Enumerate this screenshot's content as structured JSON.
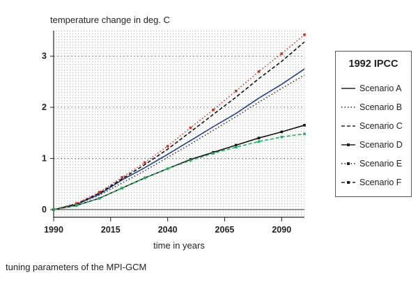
{
  "chart_data": {
    "type": "line",
    "title": "temperature change in deg. C",
    "xlabel": "time in years",
    "ylabel": "",
    "xlim": [
      1990,
      2100
    ],
    "ylim": [
      -0.15,
      3.5
    ],
    "xticks": [
      "1990",
      "2015",
      "2040",
      "2065",
      "2090"
    ],
    "yticks": [
      "0",
      "1",
      "2",
      "3"
    ],
    "grid": true,
    "legend_title": "1992 IPCC",
    "legend_position": "right",
    "series": [
      {
        "name": "Scenario A",
        "style": "solid",
        "color": "#1f3f8f",
        "x": [
          1990,
          2000,
          2010,
          2020,
          2030,
          2040,
          2050,
          2060,
          2070,
          2080,
          2090,
          2100
        ],
        "y": [
          0.0,
          0.1,
          0.3,
          0.58,
          0.82,
          1.08,
          1.35,
          1.62,
          1.88,
          2.18,
          2.45,
          2.75
        ]
      },
      {
        "name": "Scenario B",
        "style": "dotted",
        "color": "#333333",
        "x": [
          1990,
          2000,
          2010,
          2020,
          2030,
          2040,
          2050,
          2060,
          2070,
          2080,
          2090,
          2100
        ],
        "y": [
          0.0,
          0.1,
          0.28,
          0.52,
          0.76,
          1.02,
          1.28,
          1.55,
          1.82,
          2.1,
          2.37,
          2.63
        ]
      },
      {
        "name": "Scenario C",
        "style": "dashed",
        "color": "#111111",
        "x": [
          1990,
          2000,
          2010,
          2020,
          2030,
          2040,
          2050,
          2060,
          2070,
          2080,
          2090,
          2100
        ],
        "y": [
          0.0,
          0.11,
          0.32,
          0.6,
          0.88,
          1.18,
          1.52,
          1.86,
          2.2,
          2.56,
          2.9,
          3.28
        ]
      },
      {
        "name": "Scenario D",
        "style": "solid-square",
        "color": "#111111",
        "x": [
          1990,
          2000,
          2010,
          2020,
          2030,
          2040,
          2050,
          2060,
          2070,
          2080,
          2090,
          2100
        ],
        "y": [
          0.0,
          0.08,
          0.22,
          0.42,
          0.62,
          0.8,
          0.98,
          1.12,
          1.26,
          1.4,
          1.52,
          1.65
        ]
      },
      {
        "name": "Scenario E",
        "style": "dotted-square",
        "color": "#c0392b",
        "x": [
          1990,
          2000,
          2010,
          2020,
          2030,
          2040,
          2050,
          2060,
          2070,
          2080,
          2090,
          2100
        ],
        "y": [
          0.0,
          0.12,
          0.34,
          0.63,
          0.92,
          1.24,
          1.6,
          1.95,
          2.32,
          2.7,
          3.05,
          3.42
        ]
      },
      {
        "name": "Scenario F",
        "style": "dashed-square",
        "color": "#27ae60",
        "x": [
          1990,
          2000,
          2010,
          2020,
          2030,
          2040,
          2050,
          2060,
          2070,
          2080,
          2090,
          2100
        ],
        "y": [
          0.0,
          0.08,
          0.22,
          0.42,
          0.62,
          0.8,
          0.96,
          1.1,
          1.22,
          1.33,
          1.42,
          1.48
        ]
      }
    ]
  },
  "caption": "tuning parameters of the MPI-GCM"
}
